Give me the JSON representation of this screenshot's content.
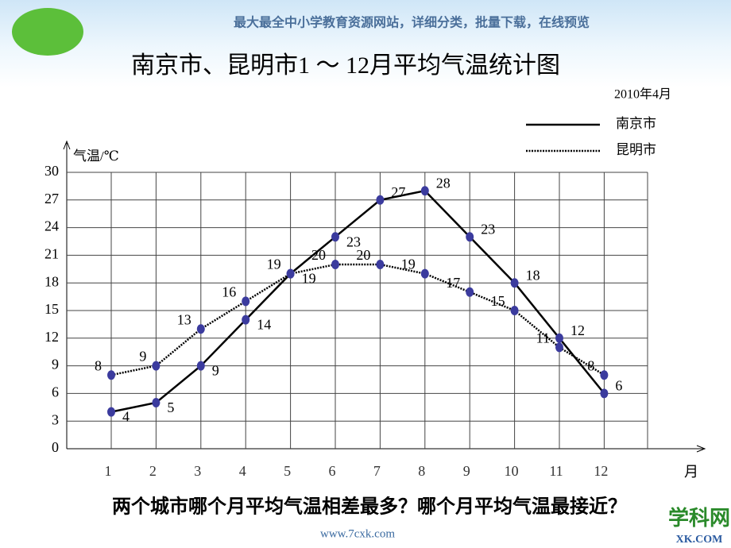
{
  "banner": "最大最全中小学教育资源网站，详细分类，批量下载，在线预览",
  "chart_data": {
    "type": "line",
    "title": "南京市、昆明市1 ～ 12月平均气温统计图",
    "subtitle": "2010年4月",
    "y_label": "气温/℃",
    "x_label": "月",
    "categories": [
      "1",
      "2",
      "3",
      "4",
      "5",
      "6",
      "7",
      "8",
      "9",
      "10",
      "11",
      "12"
    ],
    "series": [
      {
        "name": "南京市",
        "color": "#000000",
        "dash": "solid",
        "values": [
          4,
          5,
          9,
          14,
          19,
          23,
          27,
          28,
          23,
          18,
          12,
          6
        ]
      },
      {
        "name": "昆明市",
        "color": "#000000",
        "dash": "dotted",
        "values": [
          8,
          9,
          13,
          16,
          19,
          20,
          20,
          19,
          17,
          15,
          11,
          8
        ]
      }
    ],
    "marker_color": "#3b3b9e",
    "ylim": [
      0,
      30
    ],
    "yticks": [
      0,
      3,
      6,
      9,
      12,
      15,
      18,
      21,
      24,
      27,
      30
    ],
    "grid": true
  },
  "question": "两个城市哪个月平均气温相差最多？哪个月平均气温最接近？",
  "footer": "www.7cxk.com",
  "logo": {
    "name": "学科网",
    "domain": "XK.COM"
  }
}
